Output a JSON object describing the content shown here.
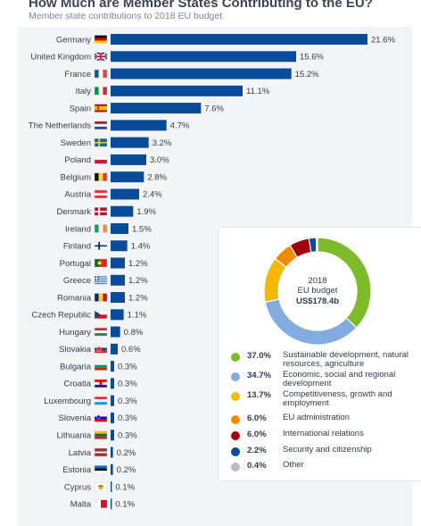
{
  "header": {
    "title": "How Much are Member States Contributing to the EU?",
    "subtitle": "Member state contributions to 2018 EU budget"
  },
  "chart_data": [
    {
      "type": "bar",
      "orientation": "horizontal",
      "categories": [
        "Germany",
        "United Kingdom",
        "France",
        "Italy",
        "Spain",
        "The Netherlands",
        "Sweden",
        "Poland",
        "Belgium",
        "Austria",
        "Denmark",
        "Ireland",
        "Finland",
        "Portugal",
        "Greece",
        "Romania",
        "Czech Republic",
        "Hungary",
        "Slovakia",
        "Bulgaria",
        "Croatia",
        "Luxembourg",
        "Slovenia",
        "Lithuania",
        "Latvia",
        "Estonia",
        "Cyprus",
        "Malta"
      ],
      "values": [
        21.6,
        15.6,
        15.2,
        11.1,
        7.6,
        4.7,
        3.2,
        3.0,
        2.8,
        2.4,
        1.9,
        1.5,
        1.4,
        1.2,
        1.2,
        1.2,
        1.1,
        0.8,
        0.6,
        0.3,
        0.3,
        0.3,
        0.3,
        0.3,
        0.2,
        0.2,
        0.1,
        0.1
      ],
      "value_labels": [
        "21.6%",
        "15.6%",
        "15.2%",
        "11.1%",
        "7.6%",
        "4.7%",
        "3.2%",
        "3.0%",
        "2.8%",
        "2.4%",
        "1.9%",
        "1.5%",
        "1.4%",
        "1.2%",
        "1.2%",
        "1.2%",
        "1.1%",
        "0.8%",
        "0.6%",
        "0.3%",
        "0.3%",
        "0.3%",
        "0.3%",
        "0.3%",
        "0.2%",
        "0.2%",
        "0.1%",
        "0.1%"
      ],
      "flags": [
        "flag-de",
        "flag-uk",
        "flag-fr",
        "flag-it",
        "flag-es",
        "flag-nl",
        "flag-se",
        "flag-pl",
        "flag-be",
        "flag-at",
        "flag-dk",
        "flag-ie",
        "flag-fi",
        "flag-pt",
        "flag-gr",
        "flag-ro",
        "flag-cz",
        "flag-hu",
        "flag-sk",
        "flag-bg",
        "flag-hr",
        "flag-lu",
        "flag-si",
        "flag-lt",
        "flag-lv",
        "flag-ee",
        "flag-cy",
        "flag-mt"
      ],
      "unit": "%",
      "xlim": [
        0,
        21.6
      ],
      "bar_color": "#0a4c99",
      "grid": false
    },
    {
      "type": "pie",
      "style": "donut",
      "center": {
        "year": "2018",
        "name": "EU budget",
        "amount": "US$178.4b"
      },
      "slices": [
        {
          "label": "Sustainable development, natural resources, agriculture",
          "value": 37.0,
          "value_label": "37.0%",
          "color": "#7dbb2a"
        },
        {
          "label": "Economic, social and regional development",
          "value": 34.7,
          "value_label": "34.7%",
          "color": "#82ace0"
        },
        {
          "label": "Competitiveness, growth and employment",
          "value": 13.7,
          "value_label": "13.7%",
          "color": "#f5b800"
        },
        {
          "label": "EU administration",
          "value": 6.0,
          "value_label": "6.0%",
          "color": "#f28b00"
        },
        {
          "label": "International relations",
          "value": 6.0,
          "value_label": "6.0%",
          "color": "#a3000e"
        },
        {
          "label": "Security and citizenship",
          "value": 2.2,
          "value_label": "2.2%",
          "color": "#0a4c99"
        },
        {
          "label": "Other",
          "value": 0.4,
          "value_label": "0.4%",
          "color": "#b8bcc1"
        }
      ]
    }
  ]
}
